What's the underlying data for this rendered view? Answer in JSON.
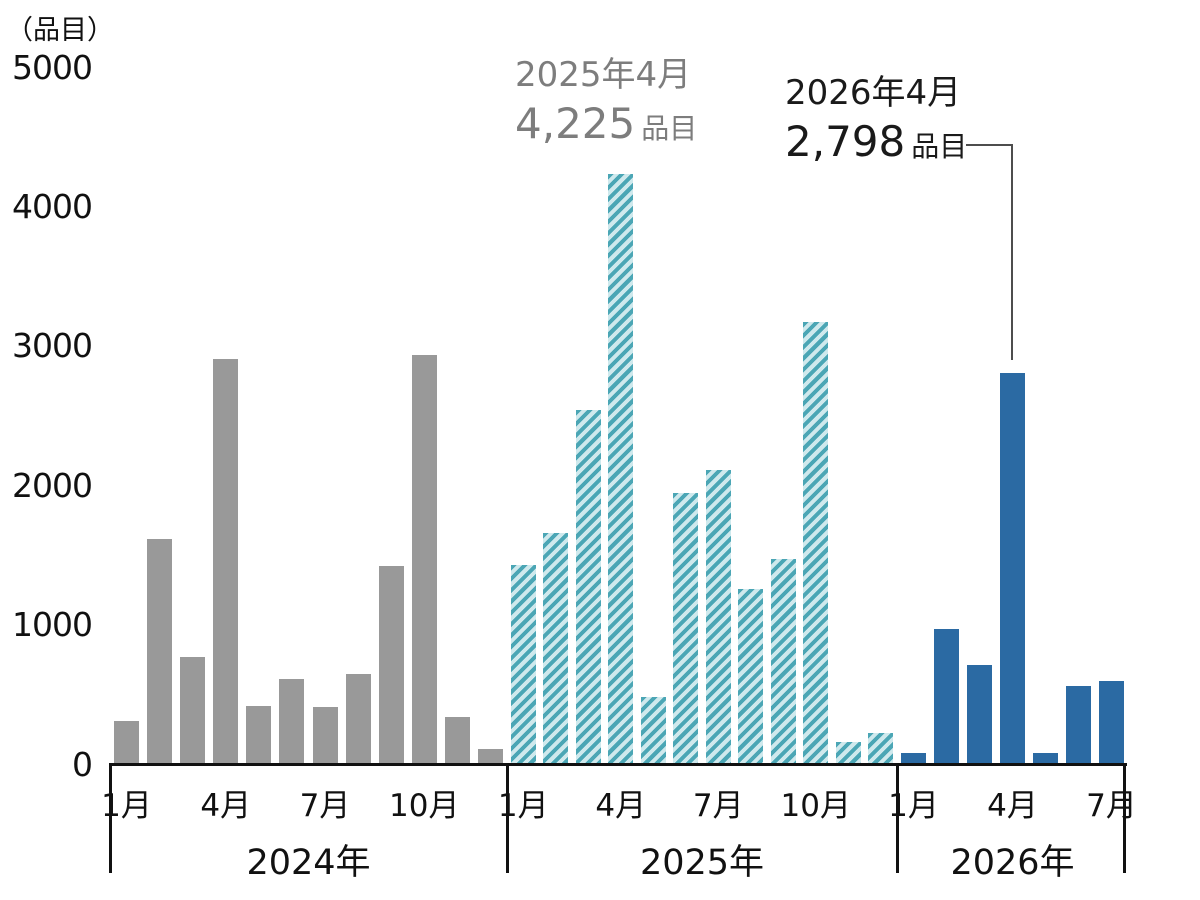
{
  "colors": {
    "bar_2024": "#999999",
    "bar_2025_stripe_dark": "#4ba6b5",
    "bar_2025_stripe_light": "#cfe9ed",
    "bar_2026": "#2b6aa3",
    "axis": "#111111",
    "annotation_2025_text": "#7d7d7d",
    "annotation_2026_text": "#1a1a1a",
    "callout_line": "#4d4d4d"
  },
  "y_axis": {
    "unit_label": "（品目）",
    "ticks": [
      "0",
      "1000",
      "2000",
      "3000",
      "4000",
      "5000"
    ],
    "max": 5000
  },
  "chart_data": {
    "type": "bar",
    "title": "",
    "ylabel": "（品目）",
    "ylim": [
      0,
      5000
    ],
    "grid": false,
    "legend": "none",
    "groups": [
      {
        "year": "2024年",
        "style": "solid-gray",
        "months": [
          "1月",
          "2月",
          "3月",
          "4月",
          "5月",
          "6月",
          "7月",
          "8月",
          "9月",
          "10月",
          "11月",
          "12月"
        ],
        "values": [
          300,
          1610,
          760,
          2900,
          410,
          600,
          400,
          640,
          1410,
          2930,
          330,
          100
        ],
        "tick_labels": [
          "1月",
          "4月",
          "7月",
          "10月"
        ]
      },
      {
        "year": "2025年",
        "style": "striped-teal",
        "months": [
          "1月",
          "2月",
          "3月",
          "4月",
          "5月",
          "6月",
          "7月",
          "8月",
          "9月",
          "10月",
          "11月",
          "12月"
        ],
        "values": [
          1420,
          1650,
          2530,
          4225,
          470,
          1940,
          2100,
          1250,
          1460,
          3160,
          150,
          215
        ],
        "tick_labels": [
          "1月",
          "4月",
          "7月",
          "10月"
        ]
      },
      {
        "year": "2026年",
        "style": "solid-blue",
        "months": [
          "1月",
          "2月",
          "3月",
          "4月",
          "5月",
          "6月",
          "7月"
        ],
        "values": [
          70,
          960,
          700,
          2798,
          70,
          550,
          590
        ],
        "tick_labels": [
          "1月",
          "4月",
          "7月"
        ]
      }
    ],
    "annotations": [
      {
        "target_group": "2025年",
        "target_month": "4月",
        "line1": "2025年4月",
        "value_text": "4,225",
        "suffix": "品目"
      },
      {
        "target_group": "2026年",
        "target_month": "4月",
        "line1": "2026年4月",
        "value_text": "2,798",
        "suffix": "品目"
      }
    ]
  }
}
